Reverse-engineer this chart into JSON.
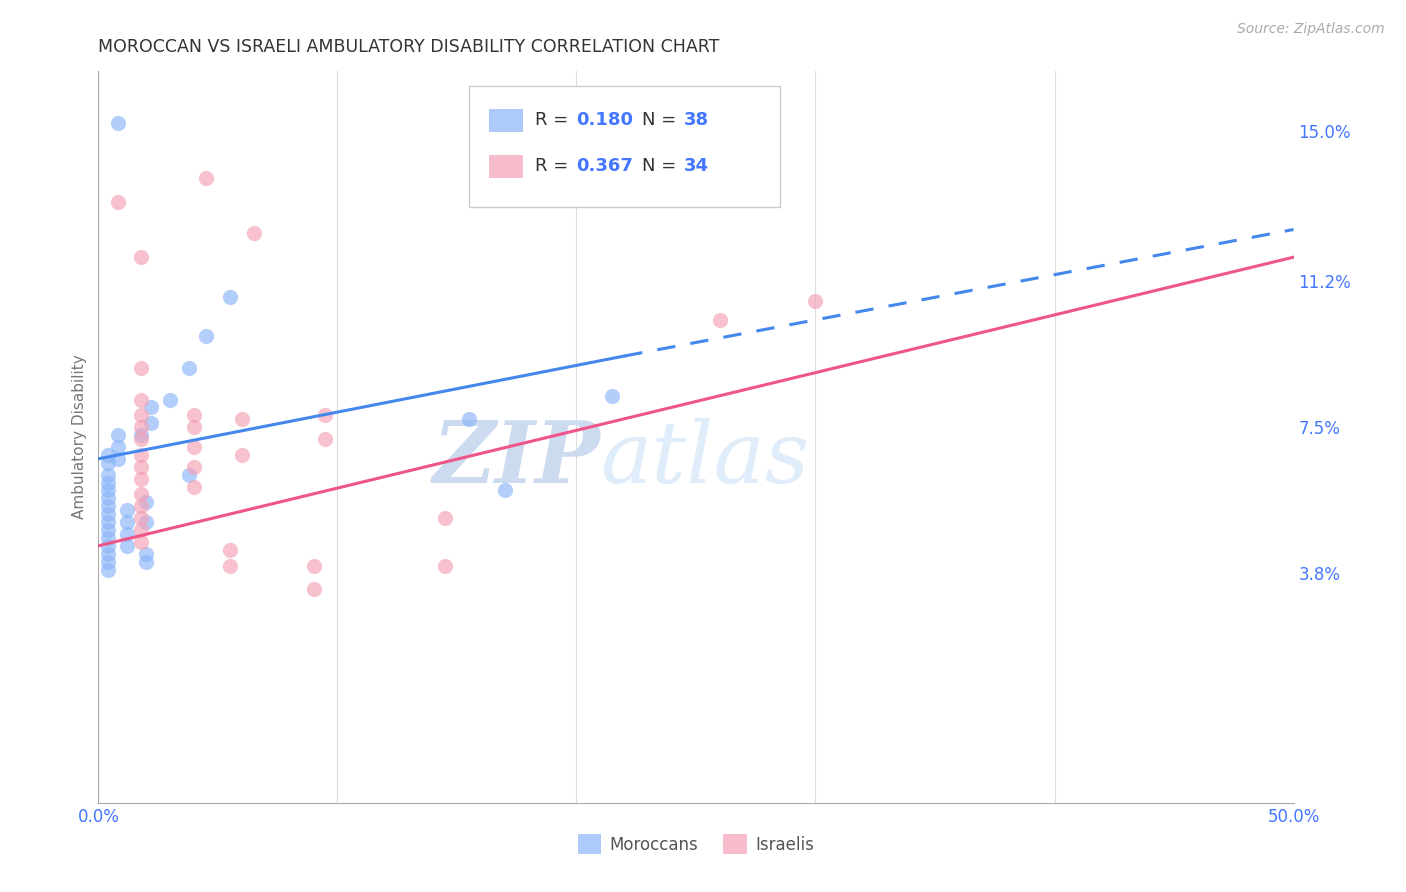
{
  "title": "MOROCCAN VS ISRAELI AMBULATORY DISABILITY CORRELATION CHART",
  "source": "Source: ZipAtlas.com",
  "ylabel": "Ambulatory Disability",
  "xlim": [
    0.0,
    0.5
  ],
  "ylim": [
    -0.02,
    0.165
  ],
  "ytick_labels_right": [
    "3.8%",
    "7.5%",
    "11.2%",
    "15.0%"
  ],
  "ytick_vals_right": [
    0.038,
    0.075,
    0.112,
    0.15
  ],
  "watermark_zip": "ZIP",
  "watermark_atlas": "atlas",
  "moroccan_color": "#8ab4f8",
  "israeli_color": "#f4a0b5",
  "moroccan_line_color": "#4488ee",
  "israeli_line_color": "#ee5588",
  "moroccan_scatter": [
    [
      0.008,
      0.152
    ],
    [
      0.055,
      0.108
    ],
    [
      0.038,
      0.09
    ],
    [
      0.03,
      0.082
    ],
    [
      0.022,
      0.08
    ],
    [
      0.022,
      0.076
    ],
    [
      0.018,
      0.073
    ],
    [
      0.008,
      0.073
    ],
    [
      0.008,
      0.07
    ],
    [
      0.008,
      0.067
    ],
    [
      0.004,
      0.068
    ],
    [
      0.004,
      0.066
    ],
    [
      0.004,
      0.063
    ],
    [
      0.004,
      0.061
    ],
    [
      0.004,
      0.059
    ],
    [
      0.004,
      0.057
    ],
    [
      0.004,
      0.055
    ],
    [
      0.004,
      0.053
    ],
    [
      0.004,
      0.051
    ],
    [
      0.004,
      0.049
    ],
    [
      0.004,
      0.047
    ],
    [
      0.004,
      0.045
    ],
    [
      0.004,
      0.043
    ],
    [
      0.004,
      0.041
    ],
    [
      0.004,
      0.039
    ],
    [
      0.012,
      0.054
    ],
    [
      0.012,
      0.051
    ],
    [
      0.012,
      0.048
    ],
    [
      0.012,
      0.045
    ],
    [
      0.02,
      0.056
    ],
    [
      0.02,
      0.051
    ],
    [
      0.02,
      0.043
    ],
    [
      0.02,
      0.041
    ],
    [
      0.038,
      0.063
    ],
    [
      0.045,
      0.098
    ],
    [
      0.155,
      0.077
    ],
    [
      0.17,
      0.059
    ],
    [
      0.215,
      0.083
    ]
  ],
  "israeli_scatter": [
    [
      0.008,
      0.132
    ],
    [
      0.045,
      0.138
    ],
    [
      0.065,
      0.124
    ],
    [
      0.018,
      0.118
    ],
    [
      0.018,
      0.09
    ],
    [
      0.018,
      0.082
    ],
    [
      0.018,
      0.078
    ],
    [
      0.018,
      0.075
    ],
    [
      0.018,
      0.072
    ],
    [
      0.018,
      0.068
    ],
    [
      0.018,
      0.065
    ],
    [
      0.018,
      0.062
    ],
    [
      0.018,
      0.058
    ],
    [
      0.018,
      0.055
    ],
    [
      0.018,
      0.052
    ],
    [
      0.018,
      0.049
    ],
    [
      0.018,
      0.046
    ],
    [
      0.04,
      0.078
    ],
    [
      0.04,
      0.075
    ],
    [
      0.04,
      0.07
    ],
    [
      0.04,
      0.065
    ],
    [
      0.04,
      0.06
    ],
    [
      0.06,
      0.077
    ],
    [
      0.06,
      0.068
    ],
    [
      0.095,
      0.072
    ],
    [
      0.055,
      0.04
    ],
    [
      0.055,
      0.044
    ],
    [
      0.09,
      0.034
    ],
    [
      0.09,
      0.04
    ],
    [
      0.095,
      0.078
    ],
    [
      0.145,
      0.052
    ],
    [
      0.145,
      0.04
    ],
    [
      0.26,
      0.102
    ],
    [
      0.3,
      0.107
    ]
  ],
  "moroccan_line_solid": [
    [
      0.0,
      0.067
    ],
    [
      0.22,
      0.093
    ]
  ],
  "moroccan_line_dashed": [
    [
      0.22,
      0.093
    ],
    [
      0.5,
      0.125
    ]
  ],
  "israeli_line": [
    [
      0.0,
      0.045
    ],
    [
      0.5,
      0.118
    ]
  ],
  "background_color": "#ffffff",
  "grid_color": "#dddddd",
  "title_color": "#333333",
  "axis_label_color": "#777777",
  "right_label_color": "#4477ff",
  "xtick_color": "#4477ff",
  "legend_R_color": "#333333",
  "legend_val_color": "#4477ff",
  "legend_N_color": "#333333",
  "legend_num_color": "#4477ff"
}
